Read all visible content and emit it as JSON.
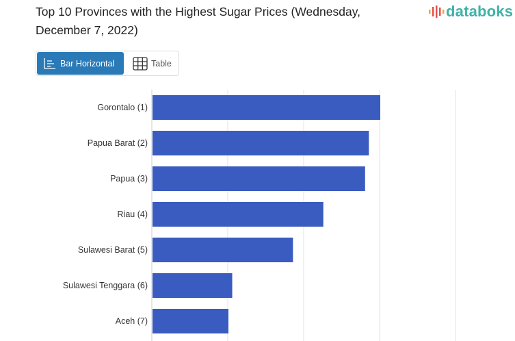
{
  "title": "Top 10 Provinces with the Highest Sugar Prices (Wednesday, December 7, 2022)",
  "logo": "databoks",
  "tabs": [
    {
      "label": "Bar Horizontal",
      "active": true
    },
    {
      "label": "Table",
      "active": false
    }
  ],
  "colors": {
    "bar": "#3a5bbf",
    "accent": "#2a7ab8",
    "logo": "#3fb2a6"
  },
  "chart_data": {
    "type": "bar",
    "orientation": "horizontal",
    "title": "Top 10 Provinces with the Highest Sugar Prices (Wednesday, December 7, 2022)",
    "categories": [
      "Gorontalo (1)",
      "Papua Barat (2)",
      "Papua (3)",
      "Riau (4)",
      "Sulawesi Barat (5)",
      "Sulawesi Tenggara (6)",
      "Aceh (7)"
    ],
    "values": [
      3.0,
      2.85,
      2.8,
      2.25,
      1.85,
      1.05,
      1.0
    ],
    "value_note": "relative units (axis tick labels not visible)",
    "xlim": [
      0,
      4
    ],
    "grid": true,
    "xlabel": "",
    "ylabel": ""
  }
}
